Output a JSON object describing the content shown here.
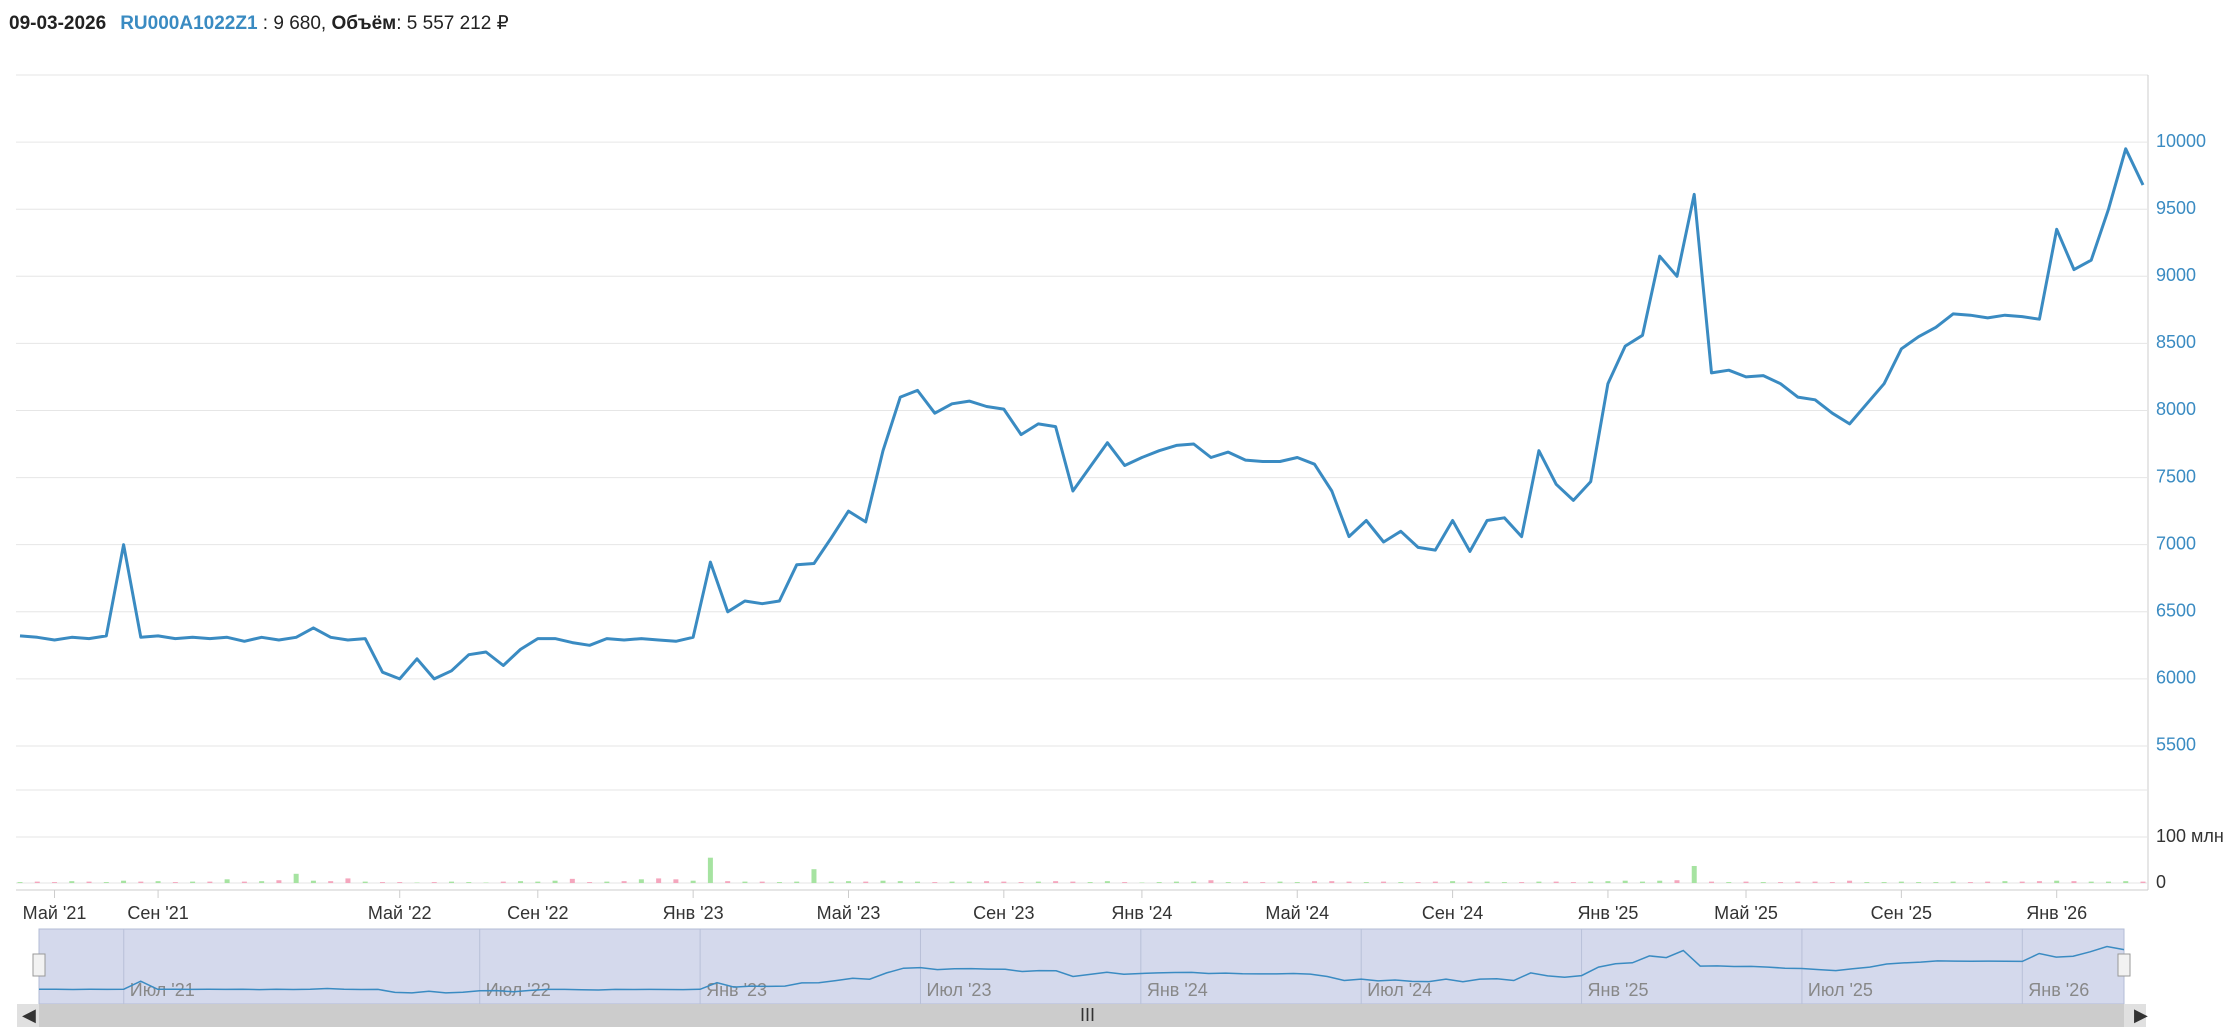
{
  "header": {
    "date": "09-03-2026",
    "ticker": "RU000A1022Z1",
    "price": ": 9 680,",
    "volume_label": "Объём",
    "volume": ": 5 557 212 ₽"
  },
  "chart_data": {
    "type": "line",
    "categories": [
      null,
      null,
      "Май '21",
      null,
      null,
      null,
      null,
      null,
      "Сен '21",
      null,
      null,
      null,
      null,
      null,
      null,
      null,
      null,
      null,
      null,
      null,
      null,
      null,
      "Май '22",
      null,
      null,
      null,
      null,
      null,
      null,
      null,
      "Сен '22",
      null,
      null,
      null,
      null,
      null,
      null,
      null,
      null,
      "Янв '23",
      null,
      null,
      null,
      null,
      null,
      null,
      null,
      null,
      "Май '23",
      null,
      null,
      null,
      null,
      null,
      null,
      null,
      null,
      "Сен '23",
      null,
      null,
      null,
      null,
      null,
      null,
      null,
      "Янв '24",
      null,
      null,
      null,
      null,
      null,
      null,
      null,
      null,
      "Май '24",
      null,
      null,
      null,
      null,
      null,
      null,
      null,
      null,
      "Сен '24",
      null,
      null,
      null,
      null,
      null,
      null,
      null,
      null,
      "Янв '25",
      null,
      null,
      null,
      null,
      null,
      null,
      null,
      "Май '25",
      null,
      null,
      null,
      null,
      null,
      null,
      null,
      null,
      "Сен '25",
      null,
      null,
      null,
      null,
      null,
      null,
      null,
      null,
      "Янв '26",
      null,
      null,
      null,
      null,
      null
    ],
    "series": [
      {
        "name": "RU000A1022Z1",
        "color": "#3a8bc2",
        "values": [
          6320,
          6310,
          6290,
          6310,
          6300,
          6320,
          7000,
          6310,
          6320,
          6300,
          6310,
          6300,
          6310,
          6280,
          6310,
          6290,
          6310,
          6380,
          6310,
          6290,
          6300,
          6050,
          6000,
          6150,
          6000,
          6060,
          6180,
          6200,
          6100,
          6220,
          6300,
          6300,
          6270,
          6250,
          6300,
          6290,
          6300,
          6290,
          6280,
          6310,
          6870,
          6500,
          6580,
          6560,
          6580,
          6850,
          6860,
          7050,
          7250,
          7170,
          7700,
          8100,
          8150,
          7980,
          8050,
          8070,
          8030,
          8010,
          7820,
          7900,
          7880,
          7400,
          7580,
          7760,
          7590,
          7650,
          7700,
          7740,
          7750,
          7650,
          7690,
          7630,
          7620,
          7620,
          7650,
          7600,
          7400,
          7060,
          7180,
          7020,
          7100,
          6980,
          6960,
          7180,
          6950,
          7180,
          7200,
          7060,
          7700,
          7450,
          7330,
          7470,
          8200,
          8480,
          8560,
          9150,
          9000,
          9610,
          8280,
          8300,
          8250,
          8260,
          8200,
          8100,
          8080,
          7980,
          7900,
          8050,
          8200,
          8460,
          8550,
          8620,
          8720,
          8710,
          8690,
          8710,
          8700,
          8680,
          9350,
          9050,
          9120,
          9500,
          9950,
          9680
        ]
      }
    ],
    "ylim": [
      5400,
      10500
    ],
    "yticks": [
      5500,
      6000,
      6500,
      7000,
      7500,
      8000,
      8500,
      9000,
      9500,
      10000
    ],
    "grid": true,
    "volume": {
      "values": [
        2,
        3,
        2,
        4,
        3,
        2,
        5,
        3,
        4,
        2,
        3,
        3,
        8,
        3,
        4,
        6,
        20,
        5,
        4,
        10,
        3,
        2,
        2,
        1,
        2,
        3,
        2,
        1,
        3,
        4,
        3,
        5,
        9,
        2,
        3,
        4,
        8,
        10,
        8,
        5,
        55,
        4,
        3,
        3,
        2,
        3,
        30,
        3,
        4,
        3,
        5,
        4,
        3,
        2,
        3,
        3,
        4,
        3,
        2,
        3,
        4,
        3,
        2,
        4,
        2,
        1,
        2,
        3,
        3,
        6,
        2,
        3,
        2,
        3,
        2,
        4,
        4,
        3,
        2,
        3,
        2,
        2,
        3,
        4,
        3,
        3,
        2,
        2,
        3,
        3,
        2,
        3,
        4,
        5,
        3,
        5,
        6,
        37,
        3,
        2,
        3,
        2,
        2,
        3,
        3,
        2,
        5,
        2,
        2,
        3,
        2,
        2,
        3,
        2,
        3,
        4,
        3,
        4,
        5,
        4,
        3,
        3,
        4,
        3
      ],
      "ylim": [
        0,
        200
      ],
      "yticks": [
        0,
        {
          "value": 100,
          "label": "100 млн"
        }
      ],
      "up_color": "#a6e3a1",
      "down_color": "#f4a6bd"
    },
    "navigator_categories": [
      null,
      null,
      null,
      null,
      null,
      "Июл '21",
      null,
      null,
      null,
      null,
      null,
      null,
      null,
      null,
      null,
      null,
      null,
      null,
      null,
      null,
      null,
      null,
      null,
      null,
      null,
      null,
      "Июл '22",
      null,
      null,
      null,
      null,
      null,
      null,
      null,
      null,
      null,
      null,
      null,
      null,
      "Янв '23",
      null,
      null,
      null,
      null,
      null,
      null,
      null,
      null,
      null,
      null,
      null,
      null,
      "Июл '23",
      null,
      null,
      null,
      null,
      null,
      null,
      null,
      null,
      null,
      null,
      null,
      null,
      "Янв '24",
      null,
      null,
      null,
      null,
      null,
      null,
      null,
      null,
      null,
      null,
      null,
      null,
      "Июл '24",
      null,
      null,
      null,
      null,
      null,
      null,
      null,
      null,
      null,
      null,
      null,
      null,
      "Янв '25",
      null,
      null,
      null,
      null,
      null,
      null,
      null,
      null,
      null,
      null,
      null,
      null,
      "Июл '25",
      null,
      null,
      null,
      null,
      null,
      null,
      null,
      null,
      null,
      null,
      null,
      null,
      "Янв '26",
      null,
      null,
      null,
      null,
      null,
      null
    ]
  }
}
